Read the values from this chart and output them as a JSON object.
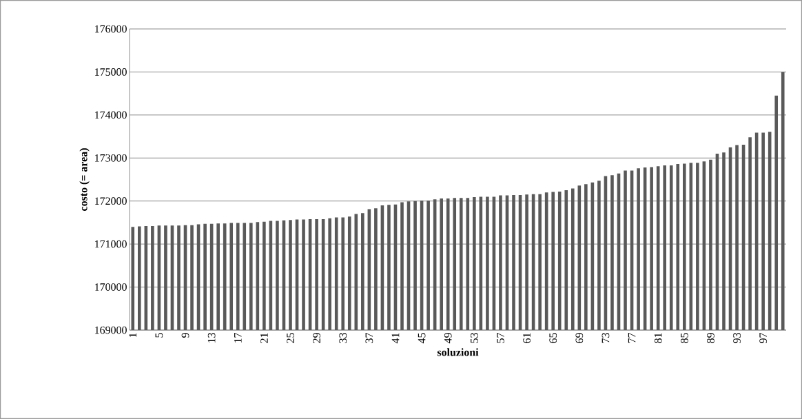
{
  "chart_data": {
    "type": "bar",
    "xlabel": "soluzioni",
    "ylabel": "costo (= area)",
    "categories": [
      "1",
      null,
      null,
      null,
      "5",
      null,
      null,
      null,
      "9",
      null,
      null,
      null,
      "13",
      null,
      null,
      null,
      "17",
      null,
      null,
      null,
      "21",
      null,
      null,
      null,
      "25",
      null,
      null,
      null,
      "29",
      null,
      null,
      null,
      "33",
      null,
      null,
      null,
      "37",
      null,
      null,
      null,
      "41",
      null,
      null,
      null,
      "45",
      null,
      null,
      null,
      "49",
      null,
      null,
      null,
      "53",
      null,
      null,
      null,
      "57",
      null,
      null,
      null,
      "61",
      null,
      null,
      null,
      "65",
      null,
      null,
      null,
      "69",
      null,
      null,
      null,
      "73",
      null,
      null,
      null,
      "77",
      null,
      null,
      null,
      "81",
      null,
      null,
      null,
      "85",
      null,
      null,
      null,
      "89",
      null,
      null,
      null,
      "93",
      null,
      null,
      null,
      "97",
      null,
      null,
      null
    ],
    "values": [
      171400,
      171410,
      171420,
      171420,
      171430,
      171430,
      171430,
      171430,
      171440,
      171440,
      171460,
      171470,
      171470,
      171480,
      171480,
      171490,
      171490,
      171490,
      171490,
      171510,
      171520,
      171540,
      171540,
      171550,
      171560,
      171570,
      171570,
      171580,
      171580,
      171580,
      171600,
      171620,
      171620,
      171640,
      171700,
      171720,
      171810,
      171830,
      171900,
      171910,
      171920,
      171970,
      171990,
      172000,
      172010,
      172010,
      172040,
      172060,
      172060,
      172070,
      172070,
      172070,
      172090,
      172100,
      172100,
      172100,
      172130,
      172130,
      172140,
      172140,
      172150,
      172160,
      172160,
      172200,
      172210,
      172220,
      172250,
      172290,
      172360,
      172390,
      172430,
      172470,
      172580,
      172600,
      172640,
      172710,
      172710,
      172760,
      172780,
      172790,
      172810,
      172830,
      172830,
      172860,
      172870,
      172890,
      172890,
      172920,
      172960,
      173100,
      173130,
      173250,
      173300,
      173310,
      173480,
      173590,
      173590,
      173610,
      174450,
      175000
    ],
    "color": "#595959",
    "ylim": [
      169000,
      176000
    ],
    "yticks": [
      169000,
      170000,
      171000,
      172000,
      173000,
      174000,
      175000,
      176000
    ],
    "grid": "y"
  }
}
